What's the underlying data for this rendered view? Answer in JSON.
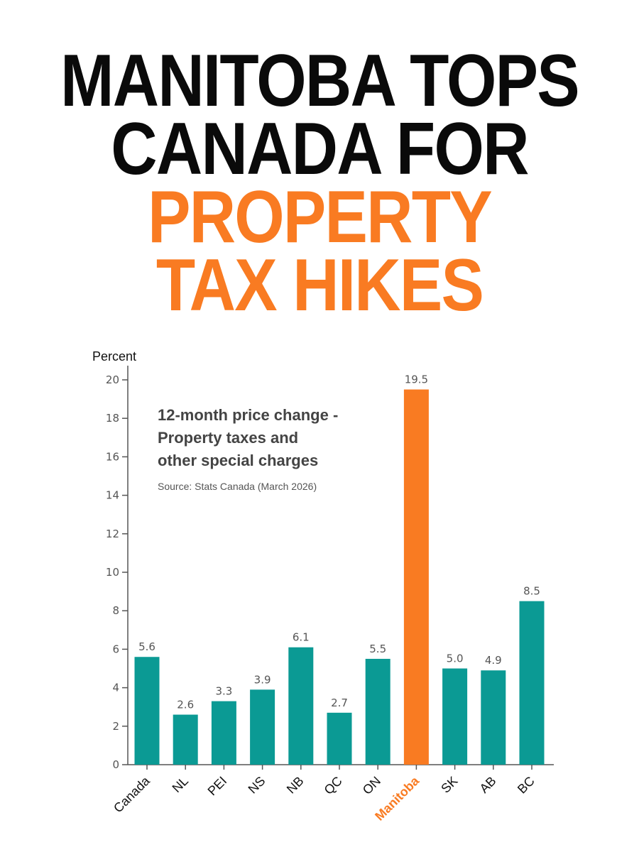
{
  "headline": {
    "line1": "MANITOBA TOPS",
    "line2": "CANADA FOR",
    "line3": "PROPERTY",
    "line4": "TAX HIKES"
  },
  "colors": {
    "headline_dark": "#0a0a0a",
    "accent": "#f97b22",
    "bar": "#0b9a94",
    "bar_highlight": "#f97b22"
  },
  "chart_data": {
    "type": "bar",
    "title": "",
    "note": {
      "lines": [
        "12-month price change -",
        "Property taxes and",
        "other special charges"
      ],
      "source": "Source: Stats Canada (March 2026)"
    },
    "ylabel": "Percent",
    "xlabel": "",
    "ylim": [
      0,
      20
    ],
    "yticks": [
      0,
      2,
      4,
      6,
      8,
      10,
      12,
      14,
      16,
      18,
      20
    ],
    "categories": [
      "Canada",
      "NL",
      "PEI",
      "NS",
      "NB",
      "QC",
      "ON",
      "Manitoba",
      "SK",
      "AB",
      "BC"
    ],
    "values": [
      5.6,
      2.6,
      3.3,
      3.9,
      6.1,
      2.7,
      5.5,
      19.5,
      5.0,
      4.9,
      8.5
    ],
    "value_labels": [
      "5.6",
      "2.6",
      "3.3",
      "3.9",
      "6.1",
      "2.7",
      "5.5",
      "19.5",
      "5.0",
      "4.9",
      "8.5"
    ],
    "highlight": "Manitoba",
    "grid": false,
    "legend": "none"
  }
}
